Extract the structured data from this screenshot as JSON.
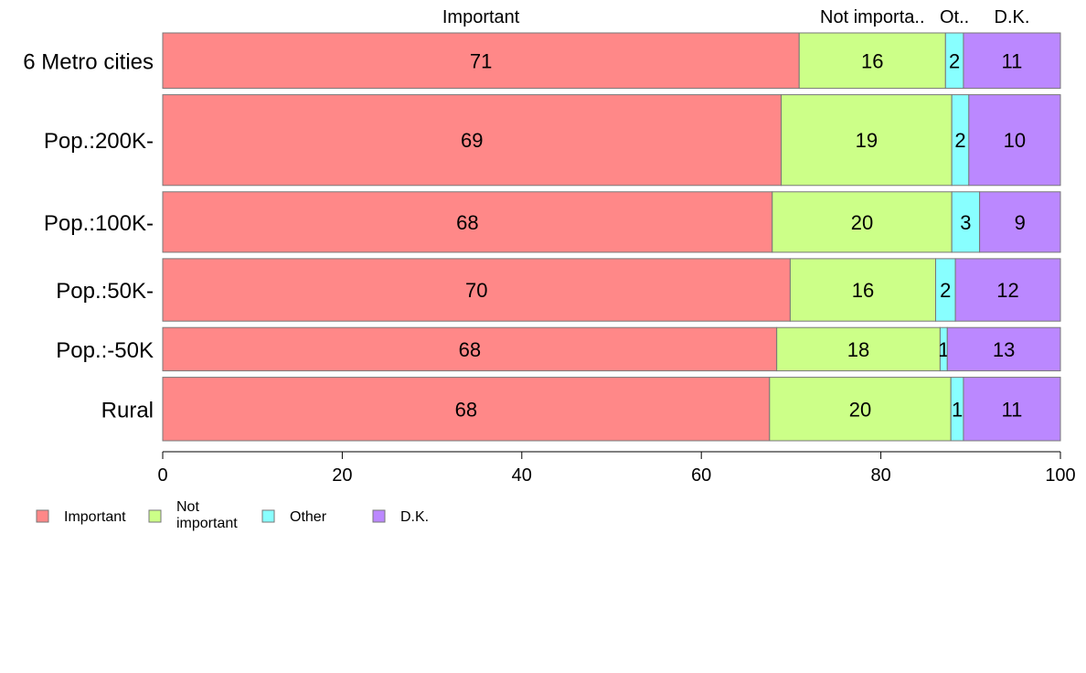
{
  "chart_data": {
    "type": "bar",
    "orientation": "horizontal",
    "stacked": true,
    "categories": [
      "6 Metro cities",
      "Pop.:200K-",
      "Pop.:100K-",
      "Pop.:50K-",
      "Pop.:-50K",
      "Rural"
    ],
    "category_weights": [
      0.55,
      0.9,
      0.6,
      0.62,
      0.43,
      0.63
    ],
    "series": [
      {
        "name": "Important",
        "color": "#ff8888",
        "values": [
          70.9,
          68.9,
          67.9,
          69.9,
          68.4,
          67.6
        ],
        "labels": [
          "71",
          "69",
          "68",
          "70",
          "68",
          "68"
        ]
      },
      {
        "name": "Not important",
        "color": "#ccff88",
        "values": [
          16.3,
          19.0,
          20.0,
          16.2,
          18.2,
          20.2
        ],
        "labels": [
          "16",
          "19",
          "20",
          "16",
          "18",
          "20"
        ]
      },
      {
        "name": "Other",
        "color": "#88ffff",
        "values": [
          2.0,
          1.9,
          3.1,
          2.2,
          0.8,
          1.4
        ],
        "labels": [
          "2",
          "2",
          "3",
          "2",
          "1",
          "1"
        ]
      },
      {
        "name": "D.K.",
        "color": "#bb88ff",
        "values": [
          10.8,
          10.2,
          9.0,
          11.7,
          12.6,
          10.8
        ],
        "labels": [
          "11",
          "10",
          "9",
          "12",
          "13",
          "11"
        ]
      }
    ],
    "top_labels": [
      "Important",
      "Not importa..",
      "Ot..",
      "D.K."
    ],
    "legend_labels": [
      "Important",
      "Not\nimportant",
      "Other",
      "D.K."
    ],
    "xlim": [
      0,
      100
    ],
    "xticks": [
      0,
      20,
      40,
      60,
      80,
      100
    ],
    "grid": false,
    "legend": "bottom-left"
  }
}
